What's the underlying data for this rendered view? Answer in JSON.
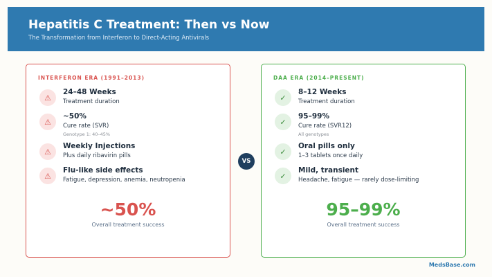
{
  "header": {
    "title": "Hepatitis C Treatment: Then vs Now",
    "subtitle": "The Transformation from Interferon to Direct-Acting Antivirals"
  },
  "colors": {
    "header_bg": "#2f7ab0",
    "interferon_accent": "#d9534f",
    "daa_accent": "#4cae4c",
    "vs_bg": "#1f3e5e"
  },
  "interferon": {
    "label": "INTERFERON ERA (1991–2013)",
    "icon": "warning-icon",
    "items": [
      {
        "title": "24–48 Weeks",
        "desc": "Treatment duration",
        "note": ""
      },
      {
        "title": "~50%",
        "desc": "Cure rate (SVR)",
        "note": "Genotype 1: 40–45%"
      },
      {
        "title": "Weekly Injections",
        "desc": "Plus daily ribavirin pills",
        "note": ""
      },
      {
        "title": "Flu-like side effects",
        "desc": "Fatigue, depression, anemia, neutropenia",
        "note": ""
      }
    ],
    "big_stat": "~50%",
    "big_stat_caption": "Overall treatment success"
  },
  "daa": {
    "label": "DAA ERA (2014–PRESENT)",
    "icon": "checkmark-icon",
    "items": [
      {
        "title": "8–12 Weeks",
        "desc": "Treatment duration",
        "note": ""
      },
      {
        "title": "95–99%",
        "desc": "Cure rate (SVR12)",
        "note": "All genotypes"
      },
      {
        "title": "Oral pills only",
        "desc": "1–3 tablets once daily",
        "note": ""
      },
      {
        "title": "Mild, transient",
        "desc": "Headache, fatigue — rarely dose-limiting",
        "note": ""
      }
    ],
    "big_stat": "95–99%",
    "big_stat_caption": "Overall treatment success"
  },
  "vs_label": "VS",
  "footer": {
    "brand": "MedsBase.com"
  }
}
